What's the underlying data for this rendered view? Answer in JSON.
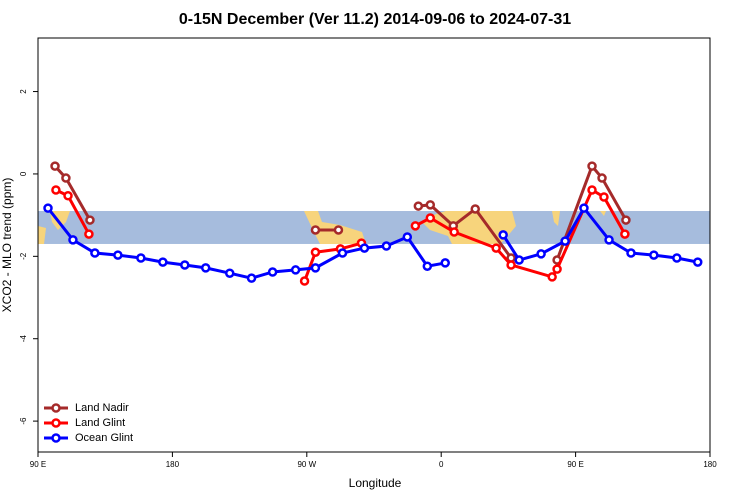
{
  "chart_data": {
    "type": "line",
    "title": "0-15N December (Ver 11.2)   2014-09-06 to 2024-07-31",
    "x_label": "Longitude",
    "y_label": "XCO2 - MLO trend (ppm)",
    "xlim": [
      90,
      540
    ],
    "ylim": [
      -6.75,
      3.3
    ],
    "xticks": [
      {
        "value": 90,
        "label": "90 E"
      },
      {
        "value": 180,
        "label": "180"
      },
      {
        "value": 270,
        "label": "90 W"
      },
      {
        "value": 360,
        "label": "0"
      },
      {
        "value": 450,
        "label": "90 E"
      },
      {
        "value": 540,
        "label": "180"
      }
    ],
    "yticks": [
      2,
      0,
      -2,
      -4,
      -6
    ],
    "band_ylim": [
      -1.7,
      -0.9
    ],
    "band_color": "#a6bcdd",
    "legend": "bottom-left",
    "series": [
      {
        "name": "Land Nadir",
        "color": "#a52a2a",
        "x": [
          101.4,
          108.7,
          124.8,
          200,
          275.8,
          291.2,
          318,
          344.7,
          352.7,
          368.1,
          382.8,
          406.8,
          420,
          437.6,
          461.0,
          467.7,
          483.7
        ],
        "values": [
          0.19,
          -0.1,
          -1.12,
          null,
          -1.36,
          -1.36,
          null,
          -0.78,
          -0.75,
          -1.26,
          -0.85,
          -2.04,
          null,
          -2.09,
          0.19,
          -0.1,
          -1.12
        ]
      },
      {
        "name": "Land Glint",
        "color": "#ff0000",
        "x": [
          102.0,
          110.1,
          124.1,
          200,
          268.5,
          275.8,
          292.5,
          306.6,
          325,
          342.7,
          352.7,
          368.7,
          396.8,
          406.8,
          434.3,
          437.6,
          461.0,
          469.0,
          483.0
        ],
        "values": [
          -0.39,
          -0.53,
          -1.46,
          null,
          -2.6,
          -1.9,
          -1.82,
          -1.68,
          null,
          -1.26,
          -1.07,
          -1.41,
          -1.8,
          -2.21,
          -2.5,
          -2.31,
          -0.39,
          -0.56,
          -1.46
        ]
      },
      {
        "name": "Ocean Glint",
        "color": "#0000ff",
        "x": [
          96.7,
          113.4,
          128.1,
          143.5,
          158.9,
          173.6,
          188.3,
          202.3,
          218.4,
          233.0,
          247.1,
          262.5,
          275.8,
          293.9,
          308.6,
          323.3,
          337.3,
          350.7,
          362.7,
          380,
          401.5,
          412.2,
          426.9,
          443.0,
          455.6,
          472.4,
          487.1,
          502.4,
          517.8,
          531.8
        ],
        "values": [
          -0.83,
          -1.6,
          -1.92,
          -1.97,
          -2.04,
          -2.14,
          -2.21,
          -2.28,
          -2.41,
          -2.53,
          -2.38,
          -2.33,
          -2.28,
          -1.92,
          -1.8,
          -1.75,
          -1.53,
          -2.24,
          -2.16,
          null,
          -1.48,
          -2.09,
          -1.94,
          -1.63,
          -0.83,
          -1.6,
          -1.92,
          -1.97,
          -2.04,
          -2.14
        ]
      }
    ]
  }
}
